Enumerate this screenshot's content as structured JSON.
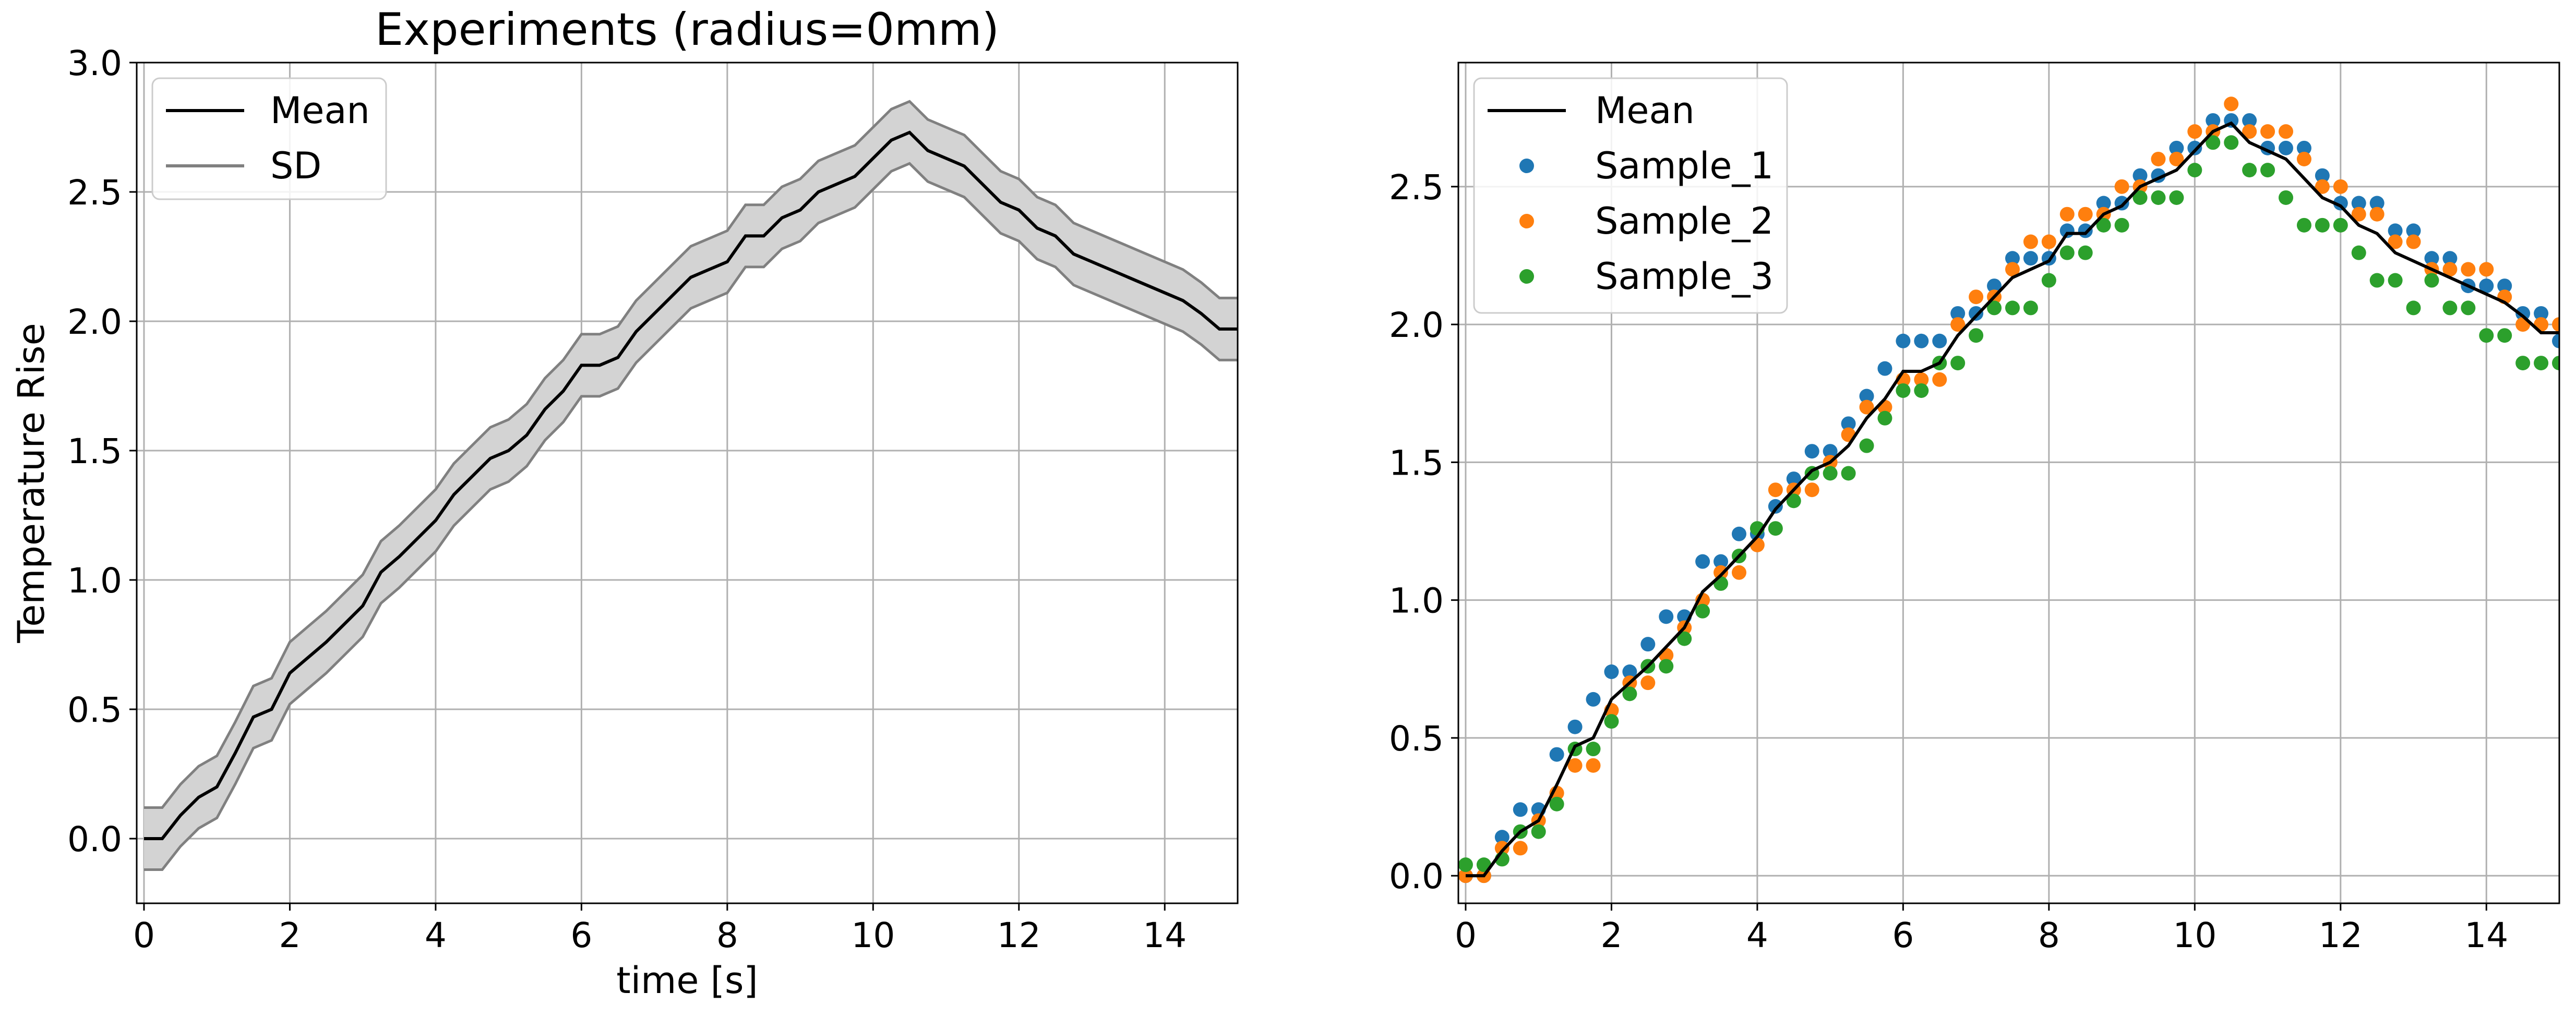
{
  "chart_data": [
    {
      "type": "line",
      "title": "Experiments (radius=0mm)",
      "xlabel": "time [s]",
      "ylabel": "Temperature Rise",
      "xlim": [
        -0.1,
        15
      ],
      "ylim": [
        -0.25,
        3.0
      ],
      "xticks": [
        "0",
        "2",
        "4",
        "6",
        "8",
        "10",
        "12",
        "14"
      ],
      "yticks": [
        "0.0",
        "0.5",
        "1.0",
        "1.5",
        "2.0",
        "2.5",
        "3.0"
      ],
      "grid": true,
      "legend_position": "upper left",
      "legend": [
        "Mean",
        "SD"
      ],
      "x": [
        0,
        0.25,
        0.5,
        0.75,
        1.0,
        1.25,
        1.5,
        1.75,
        2.0,
        2.25,
        2.5,
        2.75,
        3.0,
        3.25,
        3.5,
        3.75,
        4.0,
        4.25,
        4.5,
        4.75,
        5.0,
        5.25,
        5.5,
        5.75,
        6.0,
        6.25,
        6.5,
        6.75,
        7.0,
        7.25,
        7.5,
        7.75,
        8.0,
        8.25,
        8.5,
        8.75,
        9.0,
        9.25,
        9.5,
        9.75,
        10.0,
        10.25,
        10.5,
        10.75,
        11.0,
        11.25,
        11.5,
        11.75,
        12.0,
        12.25,
        12.5,
        12.75,
        13.0,
        13.25,
        13.5,
        13.75,
        14.0,
        14.25,
        14.5,
        14.75,
        15.0
      ],
      "series": [
        {
          "name": "Mean",
          "color": "#000000",
          "values": [
            0.0,
            0.0,
            0.09,
            0.16,
            0.2,
            0.33,
            0.47,
            0.5,
            0.64,
            0.7,
            0.76,
            0.83,
            0.9,
            1.03,
            1.09,
            1.16,
            1.23,
            1.33,
            1.4,
            1.47,
            1.5,
            1.56,
            1.66,
            1.73,
            1.83,
            1.83,
            1.86,
            1.96,
            2.03,
            2.1,
            2.17,
            2.2,
            2.23,
            2.33,
            2.33,
            2.4,
            2.43,
            2.5,
            2.53,
            2.56,
            2.63,
            2.7,
            2.73,
            2.66,
            2.63,
            2.6,
            2.53,
            2.46,
            2.43,
            2.36,
            2.33,
            2.26,
            2.23,
            2.2,
            2.17,
            2.14,
            2.11,
            2.08,
            2.03,
            1.97,
            1.97
          ]
        },
        {
          "name": "SD",
          "color": "#808080",
          "band_halfwidth": [
            0.12,
            0.12,
            0.12,
            0.12,
            0.12,
            0.12,
            0.12,
            0.12,
            0.12,
            0.12,
            0.12,
            0.12,
            0.12,
            0.12,
            0.12,
            0.12,
            0.12,
            0.12,
            0.12,
            0.12,
            0.12,
            0.12,
            0.12,
            0.12,
            0.12,
            0.12,
            0.12,
            0.12,
            0.12,
            0.12,
            0.12,
            0.12,
            0.12,
            0.12,
            0.12,
            0.12,
            0.12,
            0.12,
            0.12,
            0.12,
            0.12,
            0.12,
            0.12,
            0.12,
            0.12,
            0.12,
            0.12,
            0.12,
            0.12,
            0.12,
            0.12,
            0.12,
            0.12,
            0.12,
            0.12,
            0.12,
            0.12,
            0.12,
            0.12,
            0.12,
            0.12
          ]
        }
      ]
    },
    {
      "type": "scatter",
      "title": "",
      "xlabel": "",
      "ylabel": "",
      "xlim": [
        -0.1,
        15
      ],
      "ylim": [
        -0.1,
        2.95
      ],
      "xticks": [
        "0",
        "2",
        "4",
        "6",
        "8",
        "10",
        "12",
        "14"
      ],
      "yticks": [
        "0.0",
        "0.5",
        "1.0",
        "1.5",
        "2.0",
        "2.5"
      ],
      "grid": true,
      "legend_position": "upper left",
      "legend": [
        "Mean",
        "Sample_1",
        "Sample_2",
        "Sample_3"
      ],
      "x": [
        0,
        0.25,
        0.5,
        0.75,
        1.0,
        1.25,
        1.5,
        1.75,
        2.0,
        2.25,
        2.5,
        2.75,
        3.0,
        3.25,
        3.5,
        3.75,
        4.0,
        4.25,
        4.5,
        4.75,
        5.0,
        5.25,
        5.5,
        5.75,
        6.0,
        6.25,
        6.5,
        6.75,
        7.0,
        7.25,
        7.5,
        7.75,
        8.0,
        8.25,
        8.5,
        8.75,
        9.0,
        9.25,
        9.5,
        9.75,
        10.0,
        10.25,
        10.5,
        10.75,
        11.0,
        11.25,
        11.5,
        11.75,
        12.0,
        12.25,
        12.5,
        12.75,
        13.0,
        13.25,
        13.5,
        13.75,
        14.0,
        14.25,
        14.5,
        14.75,
        15.0
      ],
      "series": [
        {
          "name": "Mean",
          "kind": "line",
          "color": "#000000",
          "values": [
            0.0,
            0.0,
            0.09,
            0.16,
            0.2,
            0.33,
            0.47,
            0.5,
            0.64,
            0.7,
            0.76,
            0.83,
            0.9,
            1.03,
            1.09,
            1.16,
            1.23,
            1.33,
            1.4,
            1.47,
            1.5,
            1.56,
            1.66,
            1.73,
            1.83,
            1.83,
            1.86,
            1.96,
            2.03,
            2.1,
            2.17,
            2.2,
            2.23,
            2.33,
            2.33,
            2.4,
            2.43,
            2.5,
            2.53,
            2.56,
            2.63,
            2.7,
            2.73,
            2.66,
            2.63,
            2.6,
            2.53,
            2.46,
            2.43,
            2.36,
            2.33,
            2.26,
            2.23,
            2.2,
            2.17,
            2.14,
            2.11,
            2.08,
            2.03,
            1.97,
            1.97
          ]
        },
        {
          "name": "Sample_1",
          "kind": "scatter",
          "color": "#1f77b4",
          "values": [
            0.0,
            0.0,
            0.14,
            0.24,
            0.24,
            0.44,
            0.54,
            0.64,
            0.74,
            0.74,
            0.84,
            0.94,
            0.94,
            1.14,
            1.14,
            1.24,
            1.24,
            1.34,
            1.44,
            1.54,
            1.54,
            1.64,
            1.74,
            1.84,
            1.94,
            1.94,
            1.94,
            2.04,
            2.04,
            2.14,
            2.24,
            2.24,
            2.24,
            2.34,
            2.34,
            2.44,
            2.44,
            2.54,
            2.54,
            2.64,
            2.64,
            2.74,
            2.74,
            2.74,
            2.64,
            2.64,
            2.64,
            2.54,
            2.44,
            2.44,
            2.44,
            2.34,
            2.34,
            2.24,
            2.24,
            2.14,
            2.14,
            2.14,
            2.04,
            2.04,
            1.94
          ]
        },
        {
          "name": "Sample_2",
          "kind": "scatter",
          "color": "#ff7f0e",
          "values": [
            0.0,
            0.0,
            0.1,
            0.1,
            0.2,
            0.3,
            0.4,
            0.4,
            0.6,
            0.7,
            0.7,
            0.8,
            0.9,
            1.0,
            1.1,
            1.1,
            1.2,
            1.4,
            1.4,
            1.4,
            1.5,
            1.6,
            1.7,
            1.7,
            1.8,
            1.8,
            1.8,
            2.0,
            2.1,
            2.1,
            2.2,
            2.3,
            2.3,
            2.4,
            2.4,
            2.4,
            2.5,
            2.5,
            2.6,
            2.6,
            2.7,
            2.7,
            2.8,
            2.7,
            2.7,
            2.7,
            2.6,
            2.5,
            2.5,
            2.4,
            2.4,
            2.3,
            2.3,
            2.2,
            2.2,
            2.2,
            2.2,
            2.1,
            2.0,
            2.0,
            2.0
          ]
        },
        {
          "name": "Sample_3",
          "kind": "scatter",
          "color": "#2ca02c",
          "values": [
            0.04,
            0.04,
            0.06,
            0.16,
            0.16,
            0.26,
            0.46,
            0.46,
            0.56,
            0.66,
            0.76,
            0.76,
            0.86,
            0.96,
            1.06,
            1.16,
            1.26,
            1.26,
            1.36,
            1.46,
            1.46,
            1.46,
            1.56,
            1.66,
            1.76,
            1.76,
            1.86,
            1.86,
            1.96,
            2.06,
            2.06,
            2.06,
            2.16,
            2.26,
            2.26,
            2.36,
            2.36,
            2.46,
            2.46,
            2.46,
            2.56,
            2.66,
            2.66,
            2.56,
            2.56,
            2.46,
            2.36,
            2.36,
            2.36,
            2.26,
            2.16,
            2.16,
            2.06,
            2.16,
            2.06,
            2.06,
            1.96,
            1.96,
            1.86,
            1.86,
            1.86
          ]
        }
      ]
    }
  ]
}
